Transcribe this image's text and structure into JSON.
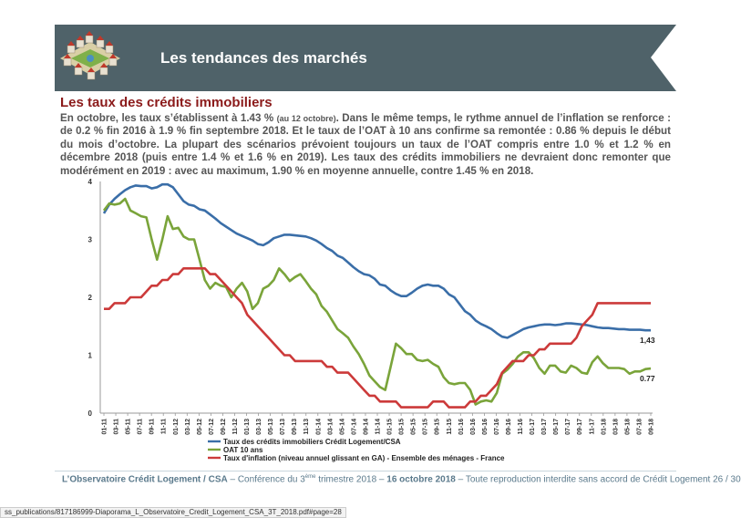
{
  "header": {
    "title": "Les tendances des marchés"
  },
  "section": {
    "subtitle": "Les taux des crédits immobiliers",
    "intro_1": "En octobre, les taux s’établissent à 1.43 % ",
    "intro_small": "(au 12 octobre)",
    "intro_2": ". Dans le même temps, le rythme annuel de l’inflation se renforce : de 0.2 % fin 2016 à 1.9 % fin septembre 2018. Et le taux de l’OAT à 10 ans confirme sa remontée : 0.86 % depuis le début du mois d’octobre. La plupart des scénarios prévoient toujours un taux de l’OAT compris entre 1.0 % et 1.2 % en décembre 2018 (puis entre 1.4 % et 1.6 % en 2019). Les taux des crédits immobiliers ne devraient donc remonter que modérément en 2019 : avec au maximum, 1.90 % en moyenne annuelle, contre 1.45 % en 2018."
  },
  "chart_data": {
    "type": "line",
    "ylim": [
      0,
      4
    ],
    "yticks": [
      "0",
      "1",
      "2",
      "3",
      "4"
    ],
    "x_tick_labels": [
      "01-11",
      "03-11",
      "05-11",
      "07-11",
      "09-11",
      "11-11",
      "01-12",
      "03-12",
      "05-12",
      "07-12",
      "09-12",
      "11-12",
      "01-13",
      "03-13",
      "05-13",
      "07-13",
      "09-13",
      "11-13",
      "01-14",
      "03-14",
      "05-14",
      "07-14",
      "09-14",
      "11-14",
      "01-15",
      "03-15",
      "05-15",
      "07-15",
      "09-15",
      "11-15",
      "01-16",
      "03-16",
      "05-16",
      "07-16",
      "09-16",
      "11-16",
      "01-17",
      "03-17",
      "05-17",
      "07-17",
      "09-17",
      "11-17",
      "01-18",
      "03-18",
      "05-18",
      "07-18",
      "09-18"
    ],
    "x_start": "2011-01",
    "x_end": "2018-10",
    "series": [
      {
        "name": "Taux des crédits immobiliers Crédit Logement/CSA",
        "color": "#3a6ea8",
        "end_label": "1,43",
        "values": [
          3.45,
          3.6,
          3.7,
          3.78,
          3.85,
          3.9,
          3.93,
          3.92,
          3.92,
          3.88,
          3.9,
          3.95,
          3.95,
          3.9,
          3.78,
          3.66,
          3.6,
          3.58,
          3.52,
          3.5,
          3.43,
          3.36,
          3.28,
          3.22,
          3.16,
          3.1,
          3.06,
          3.02,
          2.98,
          2.92,
          2.9,
          2.95,
          3.02,
          3.05,
          3.08,
          3.08,
          3.07,
          3.06,
          3.05,
          3.02,
          2.98,
          2.92,
          2.85,
          2.8,
          2.72,
          2.68,
          2.6,
          2.52,
          2.45,
          2.4,
          2.38,
          2.32,
          2.22,
          2.2,
          2.12,
          2.06,
          2.02,
          2.02,
          2.08,
          2.15,
          2.2,
          2.22,
          2.2,
          2.2,
          2.15,
          2.05,
          2.0,
          1.88,
          1.76,
          1.7,
          1.6,
          1.54,
          1.5,
          1.45,
          1.38,
          1.32,
          1.3,
          1.35,
          1.4,
          1.45,
          1.48,
          1.5,
          1.52,
          1.53,
          1.53,
          1.52,
          1.53,
          1.55,
          1.55,
          1.54,
          1.53,
          1.52,
          1.5,
          1.48,
          1.47,
          1.47,
          1.46,
          1.45,
          1.45,
          1.44,
          1.44,
          1.44,
          1.43,
          1.43
        ]
      },
      {
        "name": "OAT 10 ans",
        "color": "#7aa43a",
        "end_label": "0.77",
        "values": [
          3.5,
          3.62,
          3.6,
          3.62,
          3.7,
          3.5,
          3.45,
          3.4,
          3.38,
          3.0,
          2.65,
          3.0,
          3.4,
          3.18,
          3.2,
          3.05,
          3.0,
          3.0,
          2.65,
          2.3,
          2.15,
          2.25,
          2.2,
          2.18,
          2.0,
          2.15,
          2.25,
          2.1,
          1.8,
          1.9,
          2.15,
          2.2,
          2.3,
          2.5,
          2.4,
          2.28,
          2.35,
          2.4,
          2.28,
          2.15,
          2.05,
          1.85,
          1.75,
          1.6,
          1.45,
          1.38,
          1.3,
          1.15,
          1.02,
          0.85,
          0.65,
          0.55,
          0.45,
          0.4,
          0.8,
          1.2,
          1.12,
          1.02,
          1.02,
          0.92,
          0.9,
          0.92,
          0.85,
          0.8,
          0.62,
          0.52,
          0.5,
          0.52,
          0.52,
          0.4,
          0.15,
          0.2,
          0.22,
          0.2,
          0.35,
          0.68,
          0.75,
          0.85,
          0.98,
          1.05,
          1.05,
          0.95,
          0.78,
          0.68,
          0.82,
          0.82,
          0.72,
          0.7,
          0.82,
          0.78,
          0.7,
          0.68,
          0.88,
          0.98,
          0.86,
          0.78,
          0.78,
          0.78,
          0.76,
          0.68,
          0.72,
          0.72,
          0.76,
          0.77
        ]
      },
      {
        "name": "Taux d'inflation (niveau annuel glissant en GA) - Ensemble des ménages - France",
        "color": "#cc3a3a",
        "values": [
          1.8,
          1.8,
          1.9,
          1.9,
          1.9,
          2.0,
          2.0,
          2.0,
          2.1,
          2.2,
          2.2,
          2.3,
          2.3,
          2.4,
          2.4,
          2.5,
          2.5,
          2.5,
          2.5,
          2.5,
          2.4,
          2.4,
          2.3,
          2.2,
          2.1,
          2.0,
          1.9,
          1.7,
          1.6,
          1.5,
          1.4,
          1.3,
          1.2,
          1.1,
          1.0,
          1.0,
          0.9,
          0.9,
          0.9,
          0.9,
          0.9,
          0.9,
          0.8,
          0.8,
          0.7,
          0.7,
          0.7,
          0.6,
          0.5,
          0.4,
          0.3,
          0.3,
          0.2,
          0.2,
          0.2,
          0.2,
          0.1,
          0.1,
          0.1,
          0.1,
          0.1,
          0.1,
          0.2,
          0.2,
          0.2,
          0.1,
          0.1,
          0.1,
          0.1,
          0.2,
          0.2,
          0.3,
          0.3,
          0.4,
          0.5,
          0.7,
          0.8,
          0.9,
          0.9,
          0.9,
          1.0,
          1.0,
          1.1,
          1.1,
          1.2,
          1.2,
          1.2,
          1.2,
          1.2,
          1.3,
          1.5,
          1.6,
          1.7,
          1.9,
          1.9,
          1.9,
          1.9,
          1.9,
          1.9,
          1.9,
          1.9,
          1.9,
          1.9,
          1.9
        ]
      }
    ]
  },
  "footer": {
    "org": "L’Observatoire Crédit Logement / CSA",
    "sep1": " – Conférence du 3",
    "sup": "ème",
    "conf": " trimestre 2018 – ",
    "date": "16 octobre 2018",
    "rest": " – Toute reproduction interdite sans accord de Crédit Logement 26 / 30"
  },
  "status_bar": {
    "url": "ss_publications/817186999-Diaporama_L_Observatoire_Credit_Logement_CSA_3T_2018.pdf#page=28"
  }
}
